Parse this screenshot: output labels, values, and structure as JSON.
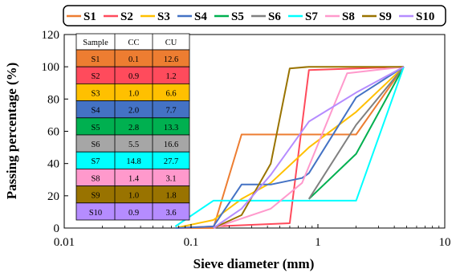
{
  "chart_data": {
    "type": "line",
    "title": "",
    "xlabel": "Sieve diameter (mm)",
    "ylabel": "Passing percentage (%)",
    "xscale": "log",
    "xlim": [
      0.01,
      10
    ],
    "ylim": [
      0,
      120
    ],
    "x_ticks": [
      0.01,
      0.1,
      1,
      10
    ],
    "x_tick_labels": [
      "0.01",
      "0.1",
      "1",
      "10"
    ],
    "y_ticks": [
      0,
      20,
      40,
      60,
      80,
      100,
      120
    ],
    "y_tick_labels": [
      "0",
      "20",
      "40",
      "60",
      "80",
      "100",
      "120"
    ],
    "grid": false,
    "legend_placement": "top",
    "series": [
      {
        "name": "S1",
        "color": "#ED7D31",
        "x": [
          0.075,
          0.15,
          0.25,
          2.0,
          4.75
        ],
        "y": [
          0,
          0,
          58,
          58,
          100
        ]
      },
      {
        "name": "S2",
        "color": "#FF4B5C",
        "x": [
          0.075,
          0.6,
          0.85,
          4.75
        ],
        "y": [
          0,
          3,
          98,
          100
        ]
      },
      {
        "name": "S3",
        "color": "#FFC000",
        "x": [
          0.075,
          0.15,
          0.25,
          0.425,
          0.85,
          2.0,
          4.75
        ],
        "y": [
          0,
          5,
          18,
          28,
          50,
          72,
          100
        ]
      },
      {
        "name": "S4",
        "color": "#4472C4",
        "x": [
          0.075,
          0.15,
          0.25,
          0.425,
          0.75,
          0.85,
          2.0,
          4.75
        ],
        "y": [
          0,
          1,
          27,
          27,
          31,
          34,
          81,
          100
        ]
      },
      {
        "name": "S5",
        "color": "#00B050",
        "x": [
          0.85,
          2.0,
          4.75
        ],
        "y": [
          18,
          46,
          100
        ]
      },
      {
        "name": "S6",
        "color": "#808080",
        "x": [
          0.85,
          2.0,
          4.75
        ],
        "y": [
          18,
          64,
          100
        ]
      },
      {
        "name": "S7",
        "color": "#00FFFF",
        "x": [
          0.075,
          0.15,
          2.0,
          4.75
        ],
        "y": [
          1,
          17,
          17,
          100
        ]
      },
      {
        "name": "S8",
        "color": "#FF99CC",
        "x": [
          0.15,
          0.425,
          0.75,
          1.7,
          4.75
        ],
        "y": [
          0,
          12,
          28,
          96,
          100
        ]
      },
      {
        "name": "S9",
        "color": "#997300",
        "x": [
          0.15,
          0.25,
          0.425,
          0.6,
          0.85,
          4.75
        ],
        "y": [
          0,
          8,
          40,
          99,
          100,
          100
        ]
      },
      {
        "name": "S10",
        "color": "#B58CFF",
        "x": [
          0.15,
          0.25,
          0.425,
          0.85,
          2.0,
          4.75
        ],
        "y": [
          0,
          12,
          33,
          66,
          84,
          100
        ]
      }
    ],
    "table": {
      "headers": [
        "Sample",
        "CC",
        "CU"
      ],
      "rows": [
        {
          "sample": "S1",
          "cc": "0.1",
          "cu": "12.6",
          "color": "#ED7D31"
        },
        {
          "sample": "S2",
          "cc": "0.9",
          "cu": "1.2",
          "color": "#FF4B5C"
        },
        {
          "sample": "S3",
          "cc": "1.0",
          "cu": "6.6",
          "color": "#FFC000"
        },
        {
          "sample": "S4",
          "cc": "2.0",
          "cu": "7.7",
          "color": "#4472C4"
        },
        {
          "sample": "S5",
          "cc": "2.8",
          "cu": "13.3",
          "color": "#00B050"
        },
        {
          "sample": "S6",
          "cc": "5.5",
          "cu": "16.6",
          "color": "#A6A6A6"
        },
        {
          "sample": "S7",
          "cc": "14.8",
          "cu": "27.7",
          "color": "#00FFFF"
        },
        {
          "sample": "S8",
          "cc": "1.4",
          "cu": "3.1",
          "color": "#FF99CC"
        },
        {
          "sample": "S9",
          "cc": "1.0",
          "cu": "1.8",
          "color": "#997300"
        },
        {
          "sample": "S10",
          "cc": "0.9",
          "cu": "3.6",
          "color": "#B58CFF"
        }
      ]
    }
  }
}
